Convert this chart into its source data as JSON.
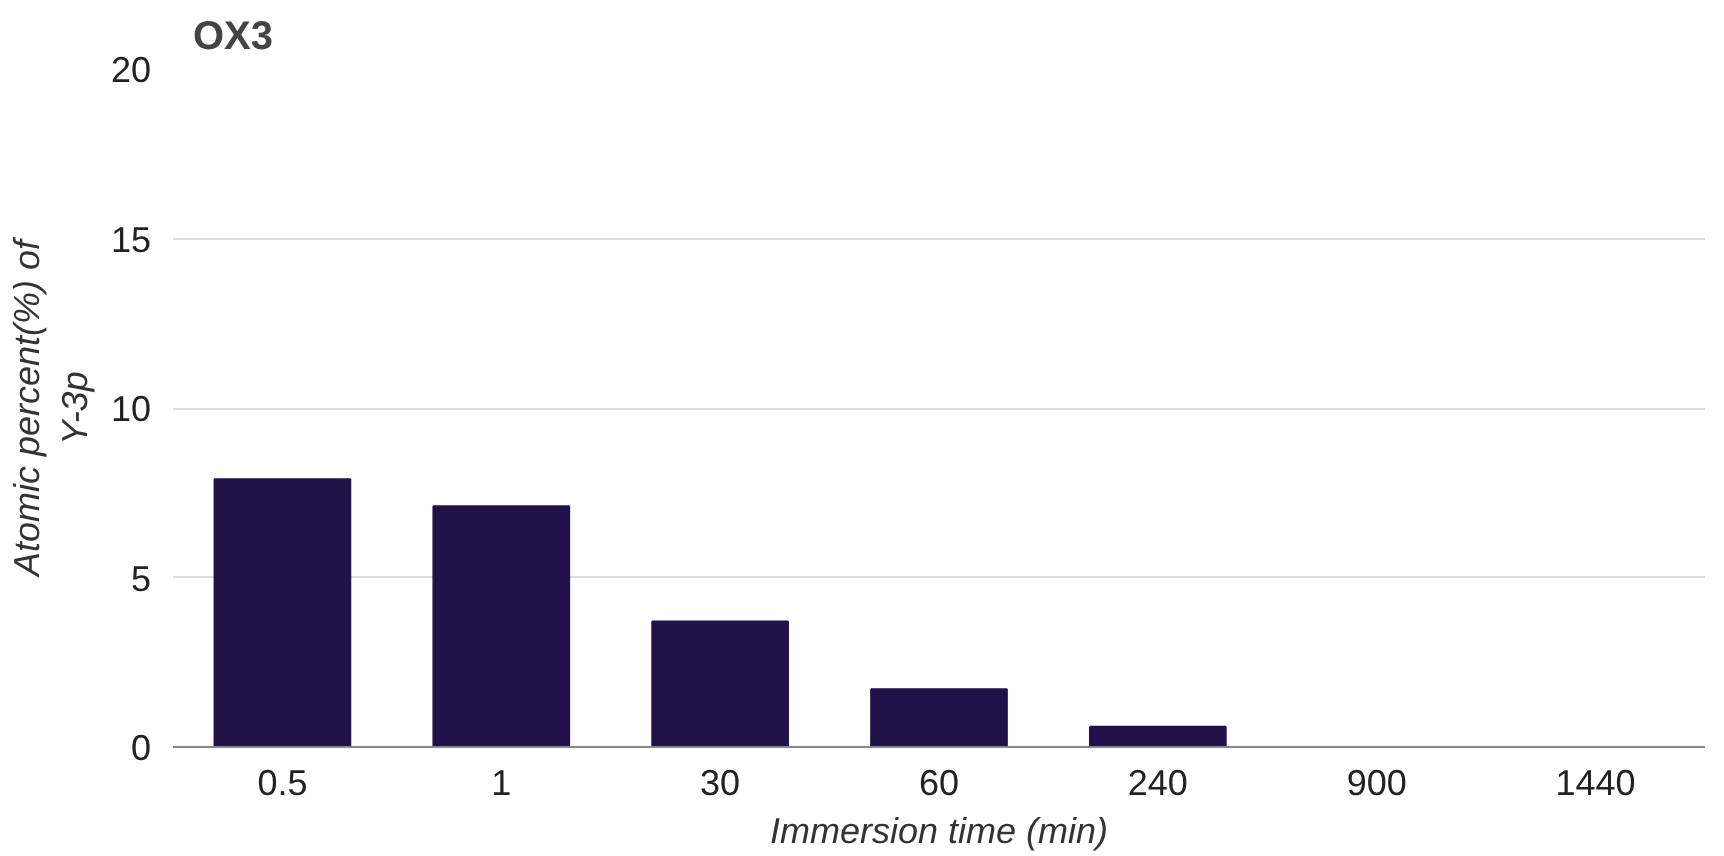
{
  "chart_data": {
    "type": "bar",
    "title": "OX3",
    "xlabel": "Immersion time (min)",
    "ylabel": "Atomic percent(%) of\nY-3p",
    "categories": [
      "0.5",
      "1",
      "30",
      "60",
      "240",
      "900",
      "1440"
    ],
    "values": [
      7.9,
      7.1,
      3.7,
      1.7,
      0.6,
      0,
      0
    ],
    "color": "#201249",
    "ylim": [
      0,
      20
    ],
    "yticks": [
      0,
      5,
      10,
      15,
      20
    ],
    "grid": "y"
  }
}
